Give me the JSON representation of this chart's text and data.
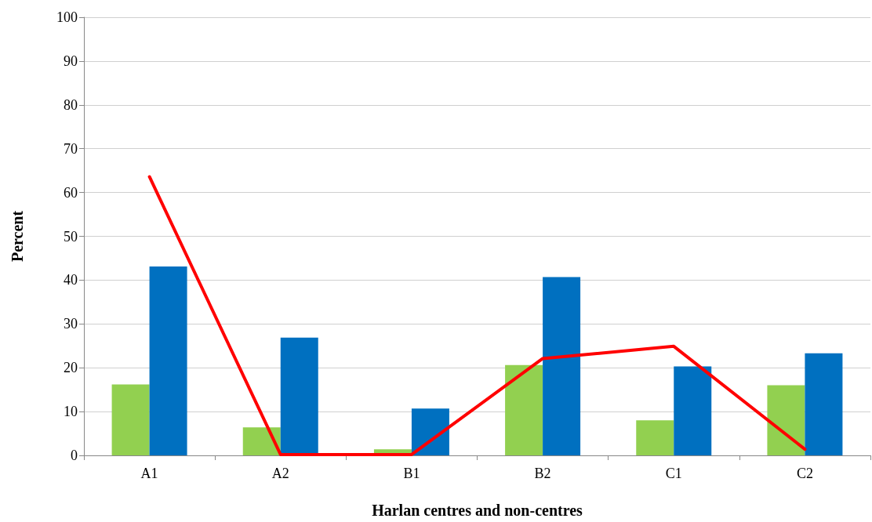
{
  "chart_data": {
    "type": "bar",
    "xlabel": "Harlan centres and non-centres",
    "ylabel": "Percent",
    "categories": [
      "A1",
      "A2",
      "B1",
      "B2",
      "C1",
      "C2"
    ],
    "series": [
      {
        "color": "#92d050",
        "values": [
          16.2,
          6.4,
          1.4,
          20.6,
          8.0,
          16.0
        ]
      },
      {
        "color": "#0070c0",
        "values": [
          43.1,
          26.9,
          10.7,
          40.7,
          20.3,
          23.3
        ]
      },
      {
        "type": "line",
        "color": "#ff0000",
        "values": [
          63.6,
          0.2,
          0.2,
          22.1,
          24.9,
          1.4
        ]
      }
    ],
    "ylim": [
      0,
      100
    ],
    "yticks": [
      0,
      10,
      20,
      30,
      40,
      50,
      60,
      70,
      80,
      90,
      100
    ],
    "grid": "y",
    "marker": "none",
    "line_style": "solid"
  }
}
